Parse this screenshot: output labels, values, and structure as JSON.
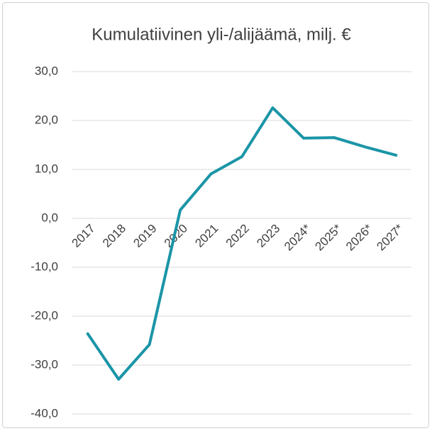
{
  "chart_data": {
    "type": "line",
    "title": "Kumulatiivinen yli-/alijäämä, milj. €",
    "categories": [
      "2017",
      "2018",
      "2019",
      "2020",
      "2021",
      "2022",
      "2023",
      "2024*",
      "2025*",
      "2026*",
      "2027*"
    ],
    "values": [
      -23.6,
      -32.9,
      -25.8,
      1.7,
      9.1,
      12.6,
      22.6,
      16.4,
      16.5,
      14.6,
      12.9
    ],
    "color": "#1b95a7",
    "ylim": [
      -40,
      30
    ],
    "yticks": [
      {
        "value": -40,
        "label": "-40,0"
      },
      {
        "value": -30,
        "label": "-30,0"
      },
      {
        "value": -20,
        "label": "-20,0"
      },
      {
        "value": -10,
        "label": "-10,0"
      },
      {
        "value": 0,
        "label": "0,0"
      },
      {
        "value": 10,
        "label": "10,0"
      },
      {
        "value": 20,
        "label": "20,0"
      },
      {
        "value": 30,
        "label": "30,0"
      }
    ],
    "grid": true
  }
}
